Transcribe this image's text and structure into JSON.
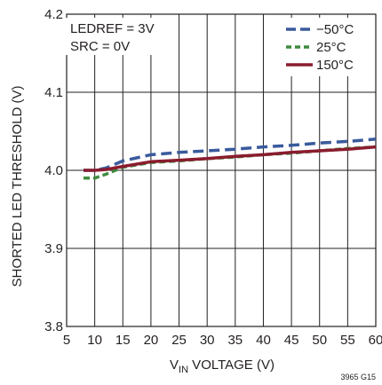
{
  "chart_data": {
    "type": "line",
    "xlabel": {
      "main": "V",
      "sub": "IN",
      "rest": " VOLTAGE (V)"
    },
    "ylabel": "SHORTED LED THRESHOLD (V)",
    "xlim": [
      5,
      60
    ],
    "ylim": [
      3.8,
      4.2
    ],
    "x_ticks": [
      "5",
      "10",
      "15",
      "20",
      "25",
      "30",
      "35",
      "40",
      "45",
      "50",
      "55",
      "60"
    ],
    "y_ticks": [
      "3.8",
      "3.9",
      "4.0",
      "4.1",
      "4.2"
    ],
    "grid": true,
    "legend_position": "top-right",
    "annotations": [
      "LEDREF = 3V",
      "SRC = 0V"
    ],
    "figure_code": "3965 G15",
    "series": [
      {
        "name": "−50°C",
        "color": "#3a5a9c",
        "dash": "dashed",
        "x": [
          8,
          10,
          12,
          15,
          20,
          25,
          30,
          35,
          40,
          45,
          50,
          55,
          60
        ],
        "y": [
          4.0,
          4.0,
          4.003,
          4.012,
          4.02,
          4.023,
          4.025,
          4.027,
          4.03,
          4.032,
          4.035,
          4.037,
          4.04
        ]
      },
      {
        "name": "25°C",
        "color": "#3f8a3f",
        "dash": "dotted",
        "x": [
          8,
          10,
          12,
          15,
          20,
          25,
          30,
          35,
          40,
          45,
          50,
          55,
          60
        ],
        "y": [
          3.99,
          3.99,
          3.995,
          4.004,
          4.01,
          4.012,
          4.015,
          4.017,
          4.02,
          4.022,
          4.025,
          4.028,
          4.03
        ]
      },
      {
        "name": "150°C",
        "color": "#8a1c2e",
        "dash": "solid",
        "x": [
          8,
          10,
          12,
          15,
          20,
          25,
          30,
          35,
          40,
          45,
          50,
          55,
          60
        ],
        "y": [
          4.0,
          4.0,
          4.001,
          4.005,
          4.011,
          4.013,
          4.015,
          4.018,
          4.02,
          4.023,
          4.025,
          4.027,
          4.03
        ]
      }
    ]
  }
}
